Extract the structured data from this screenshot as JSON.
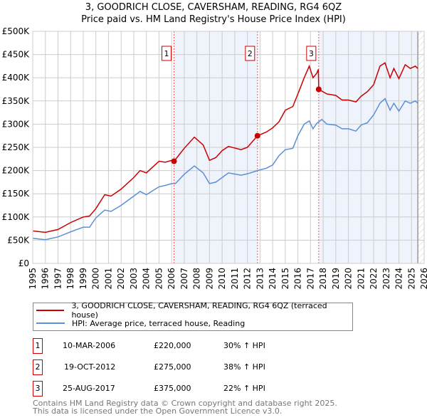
{
  "title": "3, GOODRICH CLOSE, CAVERSHAM, READING, RG4 6QZ",
  "subtitle": "Price paid vs. HM Land Registry's House Price Index (HPI)",
  "chart_data": {
    "type": "line",
    "xlim": [
      1995,
      2026
    ],
    "ylim": [
      0,
      500000
    ],
    "yticks": [
      {
        "v": 0,
        "l": "£0"
      },
      {
        "v": 50000,
        "l": "£50K"
      },
      {
        "v": 100000,
        "l": "£100K"
      },
      {
        "v": 150000,
        "l": "£150K"
      },
      {
        "v": 200000,
        "l": "£200K"
      },
      {
        "v": 250000,
        "l": "£250K"
      },
      {
        "v": 300000,
        "l": "£300K"
      },
      {
        "v": 350000,
        "l": "£350K"
      },
      {
        "v": 400000,
        "l": "£400K"
      },
      {
        "v": 450000,
        "l": "£450K"
      },
      {
        "v": 500000,
        "l": "£500K"
      }
    ],
    "xticks": [
      "1995",
      "1996",
      "1997",
      "1998",
      "1999",
      "2000",
      "2001",
      "2002",
      "2003",
      "2004",
      "2005",
      "2006",
      "2007",
      "2008",
      "2009",
      "2010",
      "2011",
      "2012",
      "2013",
      "2014",
      "2015",
      "2016",
      "2017",
      "2018",
      "2019",
      "2020",
      "2021",
      "2022",
      "2023",
      "2024",
      "2025",
      "2026"
    ],
    "series": [
      {
        "name": "3, GOODRICH CLOSE, CAVERSHAM, READING, RG4 6QZ (terraced house)",
        "color": "#cc0000",
        "x": [
          1995,
          1996,
          1997,
          1998,
          1999,
          1999.5,
          2000,
          2000.7,
          2001.2,
          2002,
          2003,
          2003.5,
          2004,
          2005,
          2005.5,
          2006,
          2006.19,
          2007,
          2007.8,
          2008.5,
          2009,
          2009.5,
          2010,
          2010.5,
          2011.5,
          2012,
          2012.8,
          2013.5,
          2014,
          2014.5,
          2015,
          2015.6,
          2016,
          2016.5,
          2016.9,
          2017.2,
          2017.5,
          2017.62,
          2017.65,
          2018.3,
          2019,
          2019.5,
          2020,
          2020.6,
          2021,
          2021.5,
          2022,
          2022.5,
          2022.9,
          2023.3,
          2023.6,
          2024,
          2024.5,
          2024.9,
          2025.3,
          2025.5
        ],
        "y": [
          70000,
          67000,
          73000,
          88000,
          100000,
          102000,
          118000,
          148000,
          145000,
          160000,
          185000,
          200000,
          195000,
          220000,
          218000,
          222000,
          220000,
          248000,
          272000,
          255000,
          222000,
          228000,
          243000,
          252000,
          245000,
          250000,
          275000,
          283000,
          292000,
          305000,
          330000,
          338000,
          365000,
          400000,
          425000,
          400000,
          410000,
          418000,
          375000,
          365000,
          362000,
          352000,
          352000,
          348000,
          360000,
          370000,
          385000,
          425000,
          432000,
          400000,
          420000,
          398000,
          428000,
          420000,
          425000,
          420000
        ]
      },
      {
        "name": "HPI: Average price, terraced house, Reading",
        "color": "#5b8fd6",
        "x": [
          1995,
          1996,
          1997,
          1998,
          1999,
          1999.5,
          2000,
          2000.7,
          2001.2,
          2002,
          2003,
          2003.5,
          2004,
          2005,
          2005.5,
          2006,
          2006.3,
          2007,
          2007.8,
          2008.5,
          2009,
          2009.5,
          2010,
          2010.5,
          2011.5,
          2012,
          2012.8,
          2013.5,
          2014,
          2014.5,
          2015,
          2015.6,
          2016,
          2016.5,
          2016.9,
          2017.2,
          2017.5,
          2017.9,
          2018.3,
          2019,
          2019.5,
          2020,
          2020.6,
          2021,
          2021.5,
          2022,
          2022.5,
          2022.9,
          2023.3,
          2023.6,
          2024,
          2024.5,
          2024.9,
          2025.3,
          2025.5
        ],
        "y": [
          54000,
          51000,
          57000,
          68000,
          78000,
          78000,
          98000,
          115000,
          112000,
          125000,
          145000,
          155000,
          148000,
          165000,
          168000,
          172000,
          172000,
          192000,
          210000,
          195000,
          172000,
          175000,
          185000,
          195000,
          190000,
          193000,
          200000,
          205000,
          212000,
          232000,
          245000,
          248000,
          275000,
          300000,
          307000,
          290000,
          302000,
          310000,
          300000,
          298000,
          290000,
          290000,
          285000,
          298000,
          303000,
          320000,
          345000,
          355000,
          330000,
          345000,
          328000,
          350000,
          345000,
          350000,
          345000
        ]
      }
    ],
    "sales": [
      {
        "n": "1",
        "x": 2006.19,
        "y": 220000,
        "date": "10-MAR-2006",
        "price": "£220,000",
        "delta": "30% ↑ HPI"
      },
      {
        "n": "2",
        "x": 2012.8,
        "y": 275000,
        "date": "19-OCT-2012",
        "price": "£275,000",
        "delta": "38% ↑ HPI"
      },
      {
        "n": "3",
        "x": 2017.65,
        "y": 375000,
        "date": "25-AUG-2017",
        "price": "£375,000",
        "delta": "22% ↑ HPI"
      }
    ],
    "shaded": [
      [
        2006.19,
        2012.8
      ],
      [
        2017.65,
        2025.5
      ]
    ],
    "hatch_from": 2025.5
  },
  "footer": {
    "line1": "Contains HM Land Registry data © Crown copyright and database right 2025.",
    "line2": "This data is licensed under the Open Government Licence v3.0."
  }
}
